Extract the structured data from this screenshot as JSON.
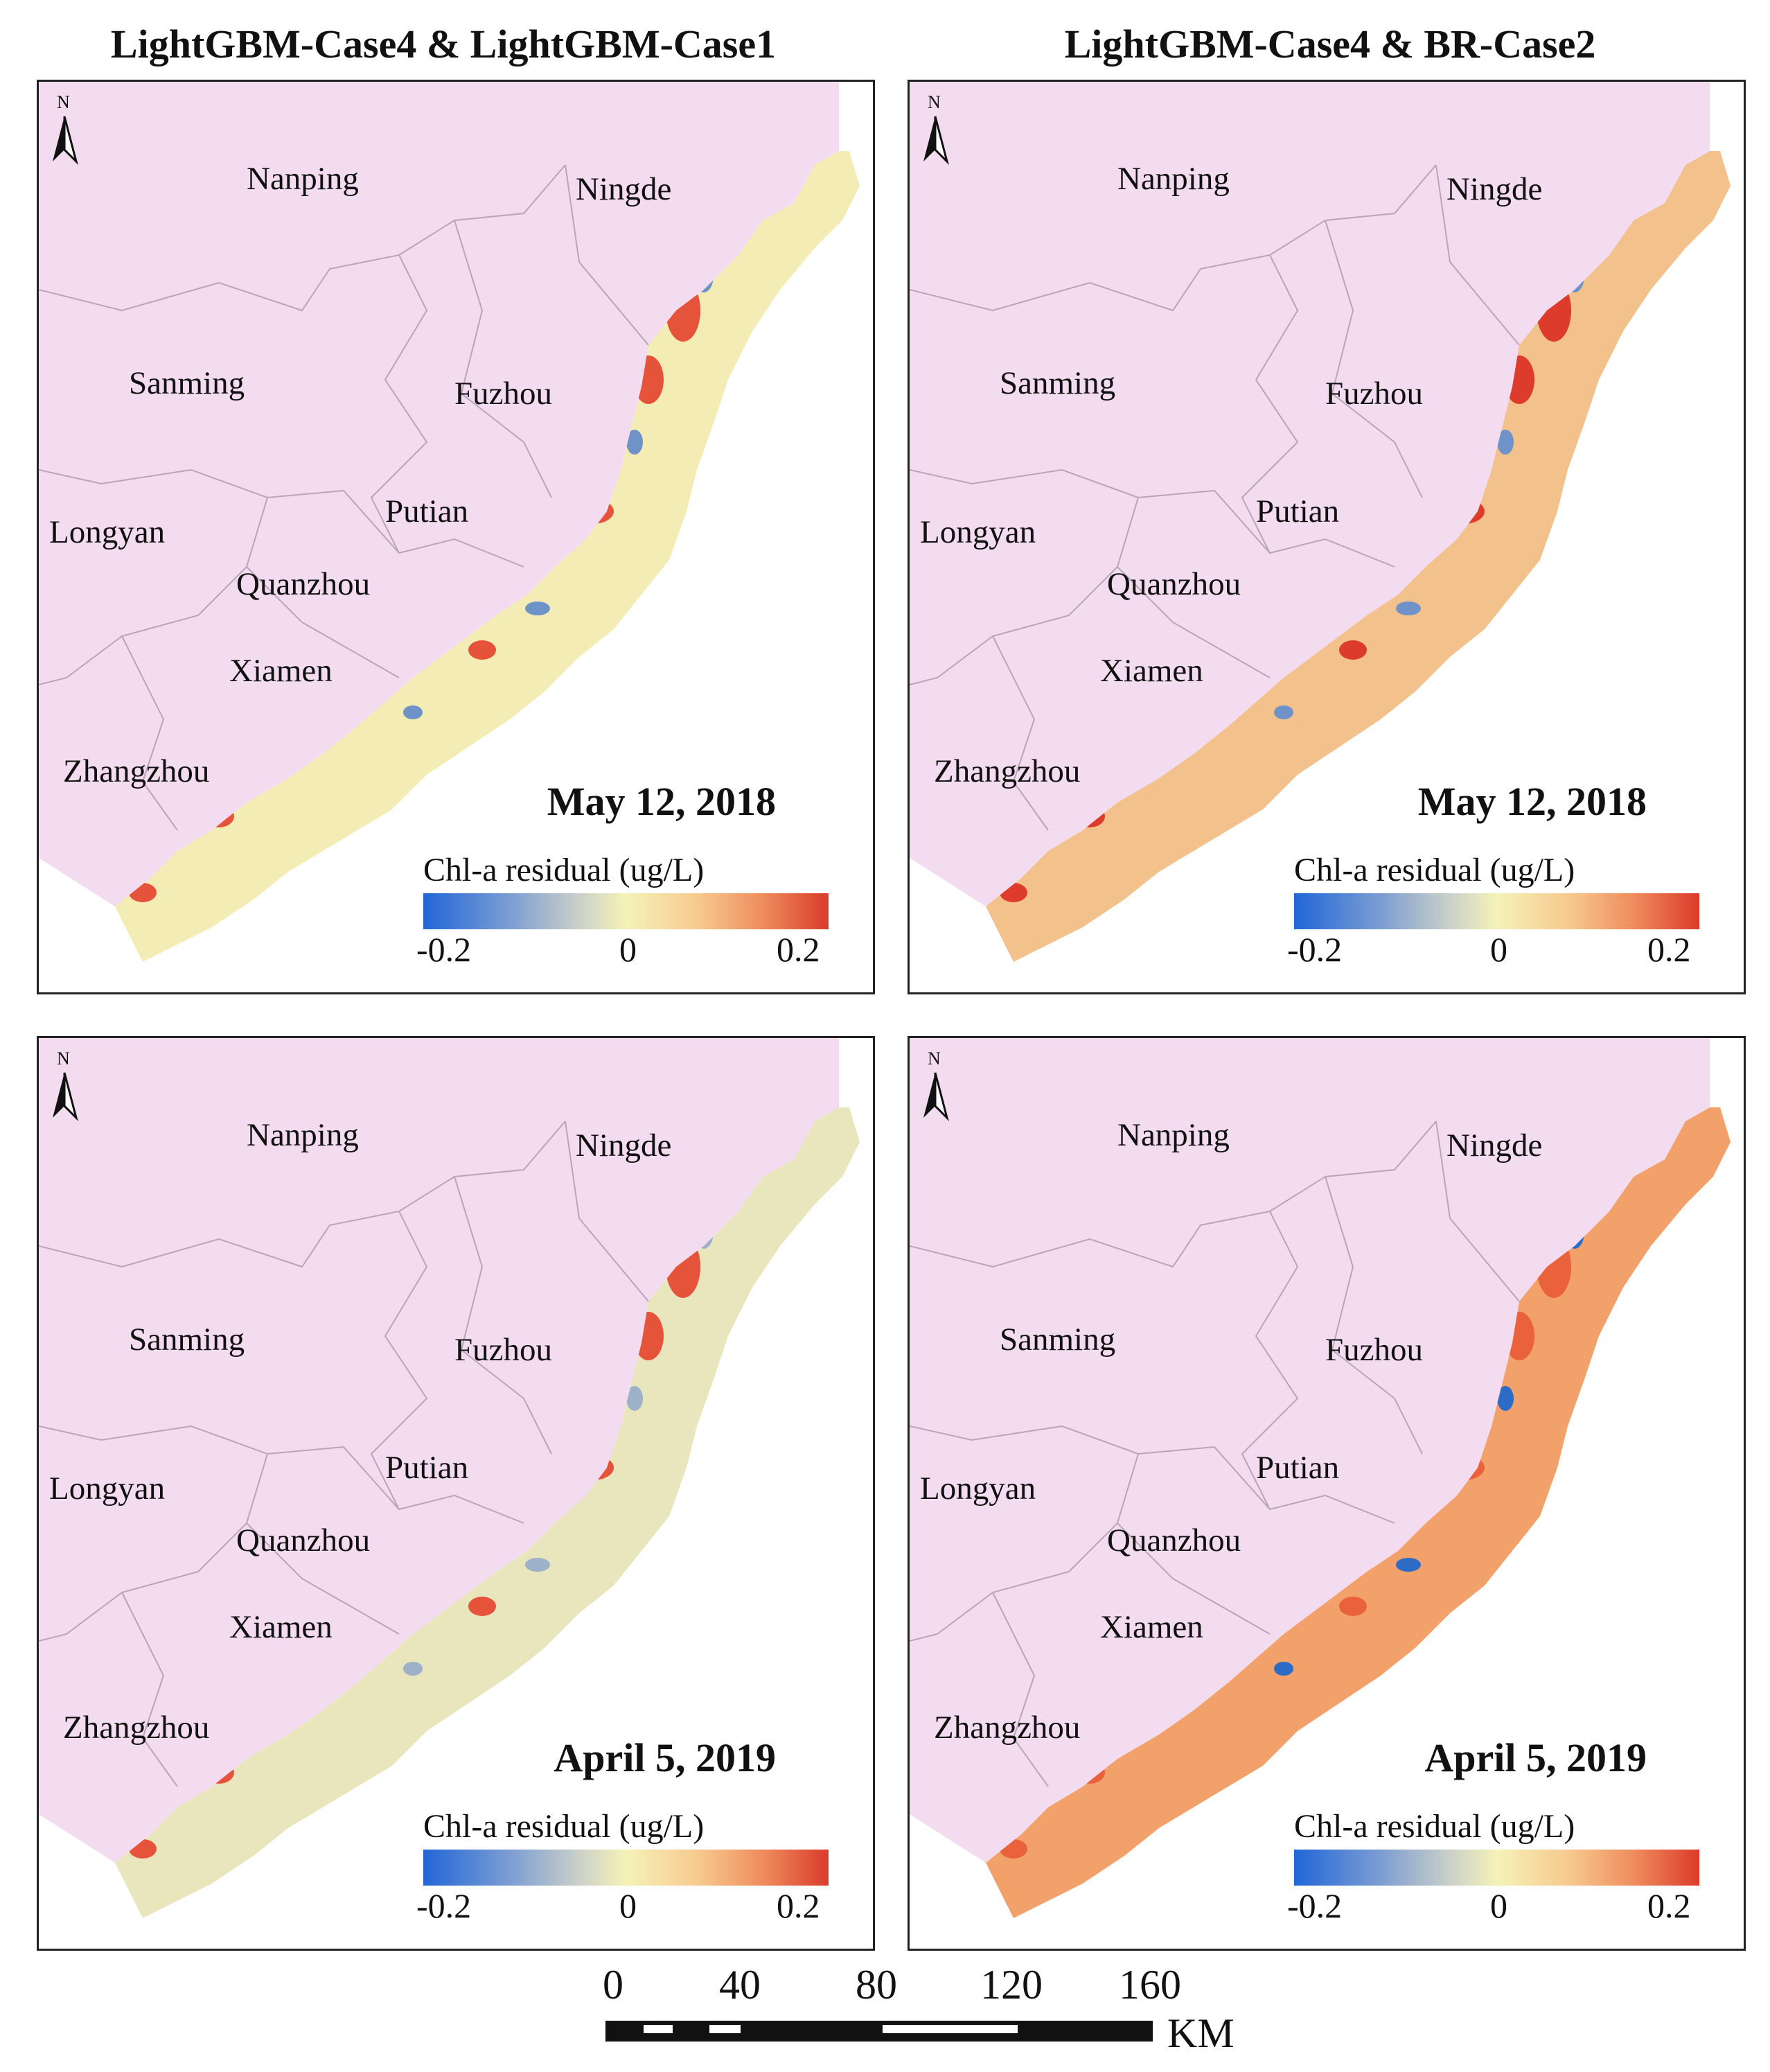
{
  "column_titles": [
    "LightGBM-Case4 & LightGBM-Case1",
    "LightGBM-Case4 & BR-Case2"
  ],
  "places": [
    "Nanping",
    "Ningde",
    "Sanming",
    "Fuzhou",
    "Putian",
    "Longyan",
    "Quanzhou",
    "Xiamen",
    "Zhangzhou"
  ],
  "north_label": "N",
  "panels": [
    {
      "id": "a",
      "date": "May 12, 2018",
      "coast_color": "#f3ecb4",
      "hot_color": "#e4533a",
      "cool_color": "#6f93c9"
    },
    {
      "id": "b",
      "date": "May 12, 2018",
      "coast_color": "#f2c18c",
      "hot_color": "#dd3b2b",
      "cool_color": "#6f93c9"
    },
    {
      "id": "c",
      "date": "April 5, 2019",
      "coast_color": "#e9e6bd",
      "hot_color": "#e4533a",
      "cool_color": "#9db2c8"
    },
    {
      "id": "d",
      "date": "April 5, 2019",
      "coast_color": "#f2a16a",
      "hot_color": "#e9623b",
      "cool_color": "#2d6cc6"
    }
  ],
  "legend": {
    "title": "Chl-a residual (ug/L)",
    "min_label": "-0.2",
    "mid_label": "0",
    "max_label": "0.2"
  },
  "land_color": "#f3dbf0",
  "boundary_color": "#b8a6b6",
  "scale_bar": {
    "labels": [
      "0",
      "40",
      "80",
      "120",
      "160"
    ],
    "unit": "KM"
  }
}
